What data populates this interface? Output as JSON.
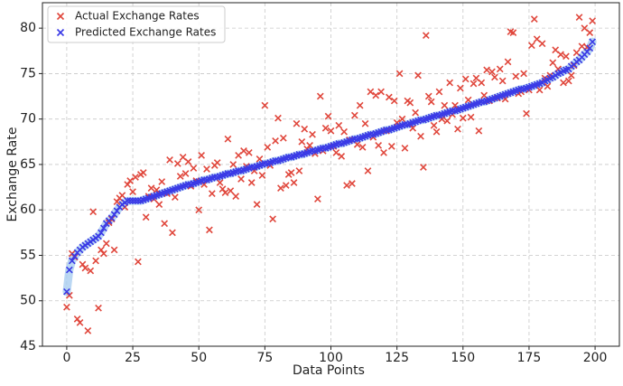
{
  "chart_data": {
    "type": "scatter",
    "xlabel": "Data Points",
    "ylabel": "Exchange Rate",
    "x": [
      0,
      1,
      2,
      3,
      4,
      5,
      6,
      7,
      8,
      9,
      10,
      11,
      12,
      13,
      14,
      15,
      16,
      17,
      18,
      19,
      20,
      21,
      22,
      23,
      24,
      25,
      26,
      27,
      28,
      29,
      30,
      31,
      32,
      33,
      34,
      35,
      36,
      37,
      38,
      39,
      40,
      41,
      42,
      43,
      44,
      45,
      46,
      47,
      48,
      49,
      50,
      51,
      52,
      53,
      54,
      55,
      56,
      57,
      58,
      59,
      60,
      61,
      62,
      63,
      64,
      65,
      66,
      67,
      68,
      69,
      70,
      71,
      72,
      73,
      74,
      75,
      76,
      77,
      78,
      79,
      80,
      81,
      82,
      83,
      84,
      85,
      86,
      87,
      88,
      89,
      90,
      91,
      92,
      93,
      94,
      95,
      96,
      97,
      98,
      99,
      100,
      101,
      102,
      103,
      104,
      105,
      106,
      107,
      108,
      109,
      110,
      111,
      112,
      113,
      114,
      115,
      116,
      117,
      118,
      119,
      120,
      121,
      122,
      123,
      124,
      125,
      126,
      127,
      128,
      129,
      130,
      131,
      132,
      133,
      134,
      135,
      136,
      137,
      138,
      139,
      140,
      141,
      142,
      143,
      144,
      145,
      146,
      147,
      148,
      149,
      150,
      151,
      152,
      153,
      154,
      155,
      156,
      157,
      158,
      159,
      160,
      161,
      162,
      163,
      164,
      165,
      166,
      167,
      168,
      169,
      170,
      171,
      172,
      173,
      174,
      175,
      176,
      177,
      178,
      179,
      180,
      181,
      182,
      183,
      184,
      185,
      186,
      187,
      188,
      189,
      190,
      191,
      192,
      193,
      194,
      195,
      196,
      197,
      198,
      199
    ],
    "series": [
      {
        "name": "Actual Exchange Rates",
        "color": "#e0473c",
        "marker": "x",
        "values": [
          49.3,
          50.6,
          55.2,
          54.8,
          48.0,
          47.6,
          54.0,
          53.6,
          46.7,
          53.3,
          59.8,
          54.4,
          49.2,
          55.6,
          55.2,
          56.3,
          58.6,
          59.0,
          55.6,
          60.9,
          61.3,
          61.6,
          60.3,
          62.8,
          63.2,
          62.0,
          63.6,
          54.3,
          63.9,
          64.1,
          59.2,
          61.5,
          62.4,
          61.2,
          62.2,
          60.6,
          63.1,
          58.5,
          61.8,
          65.5,
          57.5,
          61.4,
          65.1,
          63.7,
          65.8,
          64.0,
          65.3,
          62.6,
          64.6,
          63.2,
          60.0,
          66.0,
          62.8,
          64.5,
          57.8,
          61.8,
          64.9,
          65.2,
          63.0,
          62.3,
          61.9,
          67.8,
          62.1,
          65.0,
          61.5,
          66.0,
          63.4,
          66.5,
          64.8,
          66.3,
          63.0,
          64.3,
          60.6,
          65.6,
          63.8,
          71.5,
          66.9,
          64.9,
          59.0,
          67.6,
          70.1,
          62.4,
          67.9,
          62.7,
          63.9,
          64.1,
          63.0,
          69.5,
          64.3,
          67.5,
          68.9,
          66.7,
          67.1,
          68.3,
          66.2,
          61.2,
          72.5,
          66.5,
          69.0,
          70.3,
          68.7,
          67.0,
          66.3,
          69.3,
          65.9,
          68.6,
          62.7,
          67.7,
          62.9,
          70.4,
          67.2,
          71.5,
          66.9,
          69.5,
          64.3,
          73.0,
          68.0,
          72.6,
          67.1,
          73.0,
          66.3,
          68.7,
          72.4,
          67.0,
          72.0,
          69.6,
          75.0,
          70.0,
          66.8,
          72.0,
          71.8,
          69.0,
          70.7,
          74.8,
          68.1,
          64.7,
          79.2,
          72.5,
          71.9,
          69.3,
          68.6,
          73.0,
          70.0,
          71.5,
          69.8,
          74.0,
          70.5,
          71.5,
          68.9,
          73.4,
          70.1,
          74.4,
          72.1,
          70.2,
          73.9,
          74.5,
          68.7,
          74.0,
          72.6,
          75.4,
          72.0,
          75.2,
          74.6,
          72.3,
          75.5,
          74.2,
          72.2,
          76.3,
          79.6,
          79.5,
          74.7,
          72.8,
          73.0,
          75.0,
          70.6,
          73.2,
          78.1,
          81.0,
          78.8,
          73.2,
          78.3,
          74.5,
          73.6,
          74.8,
          76.2,
          77.6,
          75.5,
          77.1,
          74.0,
          76.9,
          74.2,
          74.8,
          75.9,
          77.3,
          81.2,
          78.0,
          80.0,
          77.9,
          79.5,
          80.8
        ]
      },
      {
        "name": "Predicted Exchange Rates",
        "color": "#3a3ae6",
        "marker": "x",
        "values": [
          51.0,
          53.4,
          54.4,
          54.9,
          55.3,
          55.6,
          55.9,
          56.1,
          56.3,
          56.5,
          56.7,
          56.9,
          57.1,
          57.5,
          58.0,
          58.5,
          58.8,
          59.1,
          59.5,
          59.9,
          60.3,
          60.6,
          60.8,
          61.0,
          61.0,
          61.0,
          61.0,
          61.0,
          61.0,
          61.1,
          61.2,
          61.3,
          61.4,
          61.5,
          61.6,
          61.7,
          61.8,
          61.9,
          62.0,
          62.1,
          62.2,
          62.3,
          62.4,
          62.5,
          62.6,
          62.7,
          62.8,
          62.8,
          62.9,
          63.0,
          63.1,
          63.2,
          63.3,
          63.3,
          63.4,
          63.5,
          63.6,
          63.6,
          63.7,
          63.8,
          63.9,
          64.0,
          64.0,
          64.1,
          64.2,
          64.3,
          64.3,
          64.4,
          64.5,
          64.6,
          64.7,
          64.7,
          64.8,
          64.9,
          65.0,
          65.1,
          65.1,
          65.2,
          65.3,
          65.4,
          65.4,
          65.5,
          65.6,
          65.7,
          65.8,
          65.8,
          65.9,
          66.0,
          66.1,
          66.1,
          66.2,
          66.3,
          66.4,
          66.5,
          66.5,
          66.6,
          66.7,
          66.8,
          66.8,
          66.9,
          67.0,
          67.1,
          67.2,
          67.3,
          67.3,
          67.4,
          67.5,
          67.6,
          67.7,
          67.8,
          67.8,
          67.9,
          68.0,
          68.1,
          68.2,
          68.3,
          68.3,
          68.4,
          68.5,
          68.6,
          68.7,
          68.8,
          68.8,
          68.9,
          69.0,
          69.1,
          69.2,
          69.3,
          69.4,
          69.4,
          69.5,
          69.6,
          69.7,
          69.8,
          69.9,
          69.9,
          70.0,
          70.1,
          70.2,
          70.3,
          70.4,
          70.4,
          70.5,
          70.6,
          70.7,
          70.8,
          70.9,
          70.9,
          71.0,
          71.1,
          71.2,
          71.3,
          71.4,
          71.5,
          71.6,
          71.7,
          71.8,
          71.9,
          71.9,
          72.0,
          72.1,
          72.2,
          72.3,
          72.4,
          72.5,
          72.6,
          72.7,
          72.8,
          72.9,
          73.0,
          73.1,
          73.2,
          73.3,
          73.3,
          73.4,
          73.5,
          73.6,
          73.7,
          73.8,
          73.9,
          74.0,
          74.2,
          74.3,
          74.5,
          74.6,
          74.8,
          75.0,
          75.1,
          75.3,
          75.4,
          75.5,
          75.8,
          76.0,
          76.3,
          76.5,
          76.8,
          77.1,
          77.4,
          77.8,
          78.5
        ]
      }
    ],
    "xlim": [
      -9.2,
      209.2
    ],
    "ylim": [
      45,
      82.8
    ],
    "xticks": [
      0,
      25,
      50,
      75,
      100,
      125,
      150,
      175,
      200
    ],
    "yticks": [
      45,
      50,
      55,
      60,
      65,
      70,
      75,
      80
    ],
    "grid": true,
    "legend": "upper left",
    "band_color": "#a9cdf0"
  }
}
